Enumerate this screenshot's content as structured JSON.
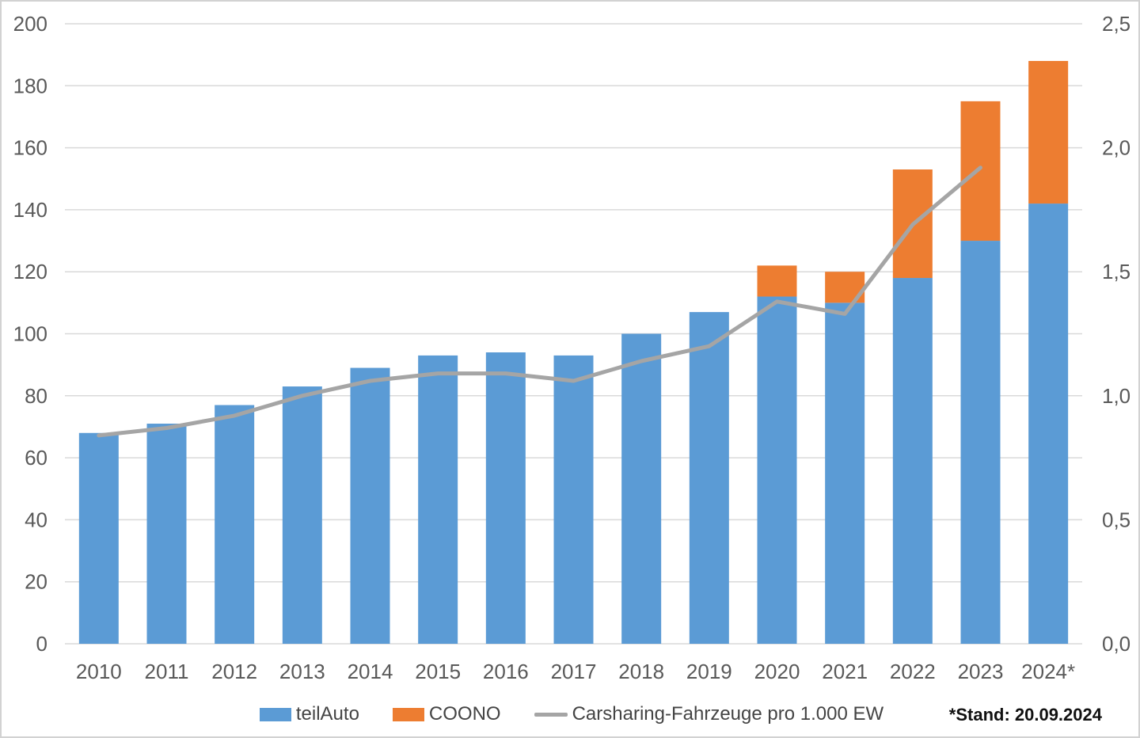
{
  "chart_data": {
    "type": "bar",
    "subtype": "stacked-bars-with-line",
    "categories": [
      "2010",
      "2011",
      "2012",
      "2013",
      "2014",
      "2015",
      "2016",
      "2017",
      "2018",
      "2019",
      "2020",
      "2021",
      "2022",
      "2023",
      "2024*"
    ],
    "series": [
      {
        "name": "teilAuto",
        "type": "bar",
        "axis": "left",
        "color": "#5B9BD5",
        "values": [
          68,
          71,
          77,
          83,
          89,
          93,
          94,
          93,
          100,
          107,
          112,
          110,
          118,
          130,
          142
        ]
      },
      {
        "name": "COONO",
        "type": "bar",
        "axis": "left",
        "color": "#ED7D31",
        "values": [
          0,
          0,
          0,
          0,
          0,
          0,
          0,
          0,
          0,
          0,
          10,
          10,
          35,
          45,
          46
        ]
      },
      {
        "name": "Carsharing-Fahrzeuge pro 1.000 EW",
        "type": "line",
        "axis": "right",
        "color": "#A5A5A5",
        "values": [
          0.84,
          0.87,
          0.92,
          1.0,
          1.06,
          1.09,
          1.09,
          1.06,
          1.14,
          1.2,
          1.38,
          1.33,
          1.69,
          1.92,
          null
        ]
      }
    ],
    "left_axis": {
      "min": 0,
      "max": 200,
      "step": 20,
      "ticks": [
        {
          "value": 200,
          "label": "200"
        },
        {
          "value": 180,
          "label": "180"
        },
        {
          "value": 160,
          "label": "160"
        },
        {
          "value": 140,
          "label": "140"
        },
        {
          "value": 120,
          "label": "120"
        },
        {
          "value": 100,
          "label": "100"
        },
        {
          "value": 80,
          "label": "80"
        },
        {
          "value": 60,
          "label": "60"
        },
        {
          "value": 40,
          "label": "40"
        },
        {
          "value": 20,
          "label": "20"
        },
        {
          "value": 0,
          "label": "0"
        }
      ]
    },
    "right_axis": {
      "min": 0,
      "max": 2.5,
      "step": 0.5,
      "ticks": [
        {
          "value": 2.5,
          "label": "2,5"
        },
        {
          "value": 2.0,
          "label": "2,0"
        },
        {
          "value": 1.5,
          "label": "1,5"
        },
        {
          "value": 1.0,
          "label": "1,0"
        },
        {
          "value": 0.5,
          "label": "0,5"
        },
        {
          "value": 0.0,
          "label": "0,0"
        }
      ]
    },
    "grid": true,
    "legend_position": "bottom",
    "title": ""
  },
  "legend": {
    "items": [
      {
        "label": "teilAuto",
        "color": "#5B9BD5",
        "marker": "square"
      },
      {
        "label": "COONO",
        "color": "#ED7D31",
        "marker": "square"
      },
      {
        "label": "Carsharing-Fahrzeuge pro 1.000 EW",
        "color": "#A5A5A5",
        "marker": "line"
      }
    ]
  },
  "footnote": "*Stand: 20.09.2024",
  "colors": {
    "bar_blue": "#5B9BD5",
    "bar_orange": "#ED7D31",
    "line_gray": "#A5A5A5",
    "gridline": "#D9D9D9",
    "axis_label": "#595959",
    "legend_text": "#444444",
    "footnote_text": "#111111"
  }
}
